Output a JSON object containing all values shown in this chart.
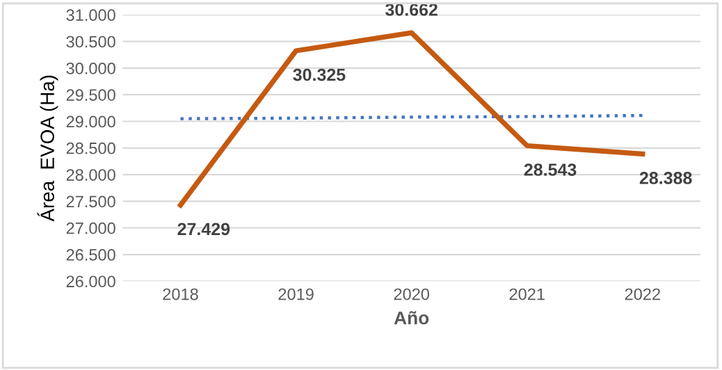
{
  "chart_data": {
    "type": "line",
    "xlabel": "Año",
    "ylabel": "Área  EVOA (Ha)",
    "categories": [
      "2018",
      "2019",
      "2020",
      "2021",
      "2022"
    ],
    "series": [
      {
        "color": "#c55a11",
        "values": [
          27429,
          30325,
          30662,
          28543,
          28388
        ],
        "value_labels": [
          "27.429",
          "30.325",
          "30.662",
          "28.543",
          "28.388"
        ],
        "line_style": "solid"
      },
      {
        "type": "line",
        "color": "#4472c4",
        "values": [
          29050,
          29060,
          29080,
          29090,
          29110
        ],
        "line_style": "dotted"
      }
    ],
    "ylim": [
      26000,
      31000
    ],
    "yticks": [
      {
        "value": 26000,
        "label": "26.000"
      },
      {
        "value": 26500,
        "label": "26.500"
      },
      {
        "value": 27000,
        "label": "27.000"
      },
      {
        "value": 27500,
        "label": "27.500"
      },
      {
        "value": 28000,
        "label": "28.000"
      },
      {
        "value": 28500,
        "label": "28.500"
      },
      {
        "value": 29000,
        "label": "29.000"
      },
      {
        "value": 29500,
        "label": "29.500"
      },
      {
        "value": 30000,
        "label": "30.000"
      },
      {
        "value": 30500,
        "label": "30.500"
      },
      {
        "value": 31000,
        "label": "31.000"
      }
    ],
    "grid": "y",
    "marker": "none"
  }
}
